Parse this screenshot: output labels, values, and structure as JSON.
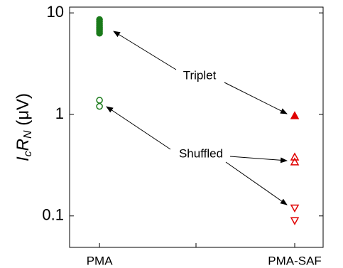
{
  "chart_data": {
    "type": "scatter",
    "ylabel": [
      "I",
      "c",
      "R",
      "N",
      " (μV)"
    ],
    "categories": [
      "PMA",
      "PMA-SAF"
    ],
    "log_y": true,
    "ylim": [
      0.049,
      11.4
    ],
    "yticks": [
      0.1,
      1,
      10
    ],
    "series": [
      {
        "marker": "circle",
        "filled": true,
        "color": "#1a7a1a",
        "values": [
          [
            8.6,
            8.2,
            7.8,
            7.5,
            7.2,
            6.9,
            6.6,
            6.3
          ],
          null
        ]
      },
      {
        "marker": "circle",
        "filled": false,
        "color": "#1a7a1a",
        "values": [
          [
            1.38,
            1.2
          ],
          null
        ]
      },
      {
        "marker": "triangle-up",
        "filled": true,
        "color": "#e00000",
        "values": [
          null,
          [
            0.97
          ]
        ]
      },
      {
        "marker": "triangle-up",
        "filled": false,
        "color": "#e00000",
        "values": [
          null,
          [
            0.38,
            0.34
          ]
        ]
      },
      {
        "marker": "triangle-down",
        "filled": false,
        "color": "#e00000",
        "values": [
          null,
          [
            0.12,
            0.09
          ]
        ]
      }
    ],
    "annotations": [
      "Triplet",
      "Shuffled"
    ]
  }
}
